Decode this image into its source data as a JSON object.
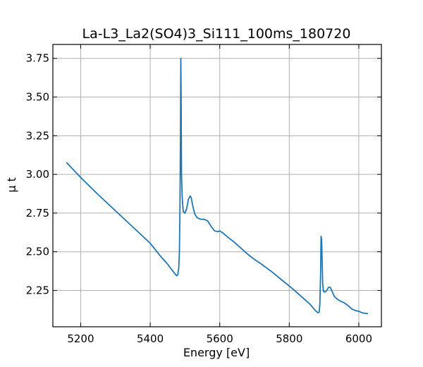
{
  "chart_data": {
    "type": "line",
    "title": "La-L3_La2(SO4)3_Si111_100ms_180720",
    "xlabel": "Energy [eV]",
    "ylabel": "μ t",
    "xlim": [
      5120,
      6065
    ],
    "ylim": [
      2.015,
      3.84
    ],
    "x_ticks": [
      5200,
      5400,
      5600,
      5800,
      6000
    ],
    "y_ticks": [
      2.25,
      2.5,
      2.75,
      3.0,
      3.25,
      3.5,
      3.75
    ],
    "x_tick_labels": [
      "5200",
      "5400",
      "5600",
      "5800",
      "6000"
    ],
    "y_tick_labels": [
      "2.25",
      "2.50",
      "2.75",
      "3.00",
      "3.25",
      "3.50",
      "3.75"
    ],
    "grid": true,
    "tick_direction": "in",
    "series": [
      {
        "color": "#1f77b4",
        "x": [
          5160,
          5200,
          5250,
          5300,
          5350,
          5400,
          5430,
          5450,
          5465,
          5472,
          5476,
          5479,
          5482,
          5484,
          5485.5,
          5487,
          5488,
          5489,
          5490,
          5492,
          5495,
          5500,
          5505,
          5510,
          5515,
          5518,
          5522,
          5528,
          5535,
          5545,
          5555,
          5565,
          5575,
          5585,
          5595,
          5600,
          5610,
          5620,
          5640,
          5660,
          5680,
          5700,
          5720,
          5750,
          5780,
          5810,
          5840,
          5860,
          5875,
          5883,
          5886,
          5888,
          5890,
          5891.5,
          5893,
          5894.5,
          5896,
          5898,
          5900,
          5903,
          5908,
          5913,
          5918,
          5922,
          5926,
          5930,
          5935,
          5940,
          5948,
          5958,
          5970,
          5980,
          5990,
          6000,
          6010,
          6025
        ],
        "y": [
          3.075,
          2.98,
          2.87,
          2.765,
          2.66,
          2.555,
          2.47,
          2.42,
          2.375,
          2.355,
          2.345,
          2.35,
          2.39,
          2.5,
          2.78,
          3.25,
          3.75,
          3.5,
          3.0,
          2.85,
          2.76,
          2.75,
          2.78,
          2.84,
          2.86,
          2.85,
          2.8,
          2.745,
          2.72,
          2.71,
          2.71,
          2.7,
          2.665,
          2.635,
          2.63,
          2.635,
          2.62,
          2.6,
          2.565,
          2.525,
          2.485,
          2.45,
          2.42,
          2.37,
          2.315,
          2.26,
          2.2,
          2.16,
          2.12,
          2.105,
          2.11,
          2.16,
          2.35,
          2.6,
          2.58,
          2.45,
          2.3,
          2.25,
          2.24,
          2.24,
          2.25,
          2.27,
          2.27,
          2.25,
          2.23,
          2.21,
          2.2,
          2.19,
          2.18,
          2.17,
          2.15,
          2.13,
          2.12,
          2.115,
          2.105,
          2.1
        ]
      }
    ]
  }
}
